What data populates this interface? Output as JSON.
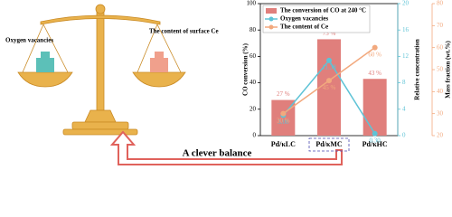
{
  "diagram": {
    "left_label": "Oxygen vacancies",
    "right_label": "The content of surface Ce",
    "caption": "A clever balance"
  },
  "chart_data": {
    "type": "bar",
    "categories": [
      "Pd/κLC",
      "Pd/κMC",
      "Pd/κHC"
    ],
    "series": [
      {
        "name": "The conversion of CO at 240 °C",
        "type": "bar",
        "color": "#e07f7c",
        "values": [
          27,
          73,
          43
        ],
        "value_labels": [
          "27 %",
          "73 %",
          "43 %"
        ]
      },
      {
        "name": "Oxygen vacancies",
        "type": "line",
        "axis": "y2",
        "color": "#5ec3d6",
        "values": [
          3.08,
          11.38,
          0.3
        ],
        "value_labels": [
          "3.08",
          "11.38",
          "0.30"
        ]
      },
      {
        "name": "The content of Ce",
        "type": "line",
        "axis": "y3",
        "color": "#f2a97e",
        "values": [
          30,
          45,
          60
        ],
        "value_labels": [
          "30 %",
          "45 %",
          "60 %"
        ]
      }
    ],
    "ylabel": "CO conversion (%)",
    "ylim": [
      0,
      100
    ],
    "yticks": [
      0,
      20,
      40,
      60,
      80,
      100
    ],
    "y2label": "Relative concentration",
    "y2lim": [
      0,
      20
    ],
    "y2ticks": [
      0,
      4,
      8,
      12,
      16,
      20
    ],
    "y3label": "Mass fraction (wt.%)",
    "y3lim": [
      20,
      80
    ],
    "y3ticks": [
      20,
      30,
      40,
      50,
      60,
      70,
      80
    ],
    "legend": "upper left"
  }
}
